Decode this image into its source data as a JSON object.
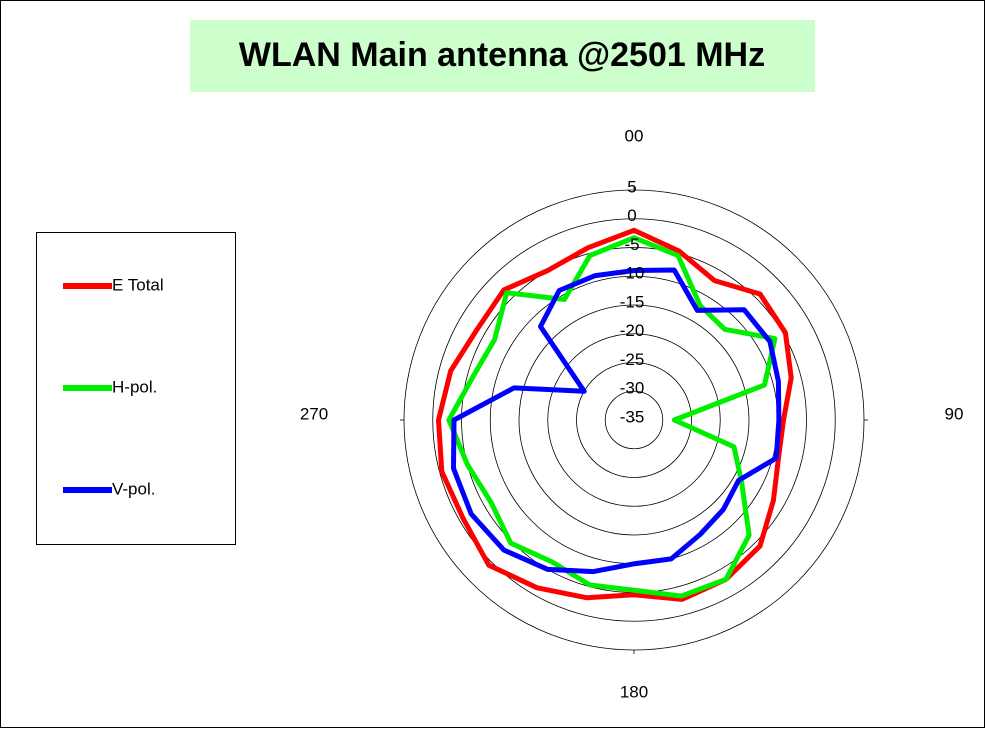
{
  "chart_data": {
    "type": "polar",
    "title": "WLAN Main antenna @2501 MHz",
    "theta": [
      0,
      15,
      30,
      45,
      60,
      75,
      90,
      105,
      120,
      135,
      150,
      165,
      180,
      195,
      210,
      225,
      240,
      255,
      270,
      285,
      300,
      315,
      330,
      345
    ],
    "series": [
      {
        "name": "E Total",
        "color": "#ff0000",
        "values": [
          -2,
          -4.6,
          -7,
          -4,
          -4.6,
          -6.7,
          -9,
          -9,
          -7,
          -4,
          -3,
          -2.7,
          -4.6,
          -3,
          -1.3,
          0.7,
          -0.7,
          -0.4,
          -1,
          -2,
          -3.5,
          -3,
          -5,
          -4
        ]
      },
      {
        "name": "H-pol.",
        "color": "#00ee00",
        "values": [
          -3.3,
          -5.4,
          -12,
          -12.7,
          -6.7,
          -11.5,
          -28,
          -17,
          -13.4,
          -6.7,
          -3,
          -3.3,
          -5.4,
          -5.3,
          -6.5,
          -4.7,
          -6.3,
          -5,
          -2.8,
          -6,
          -7,
          -3.7,
          -10.8,
          -5.4
        ]
      },
      {
        "name": "V-pol.",
        "color": "#0000ff",
        "values": [
          -9,
          -8,
          -13,
          -7.9,
          -7.7,
          -9,
          -9.8,
          -9.4,
          -14,
          -13,
          -12,
          -10,
          -10,
          -7.7,
          -5,
          -3,
          -2.3,
          -2.5,
          -3.7,
          -13.4,
          -25,
          -12,
          -9,
          -9
        ]
      }
    ],
    "rlim": [
      -35,
      5
    ],
    "rticks": [
      5,
      0,
      -5,
      -10,
      -15,
      -20,
      -25,
      -30,
      -35
    ],
    "thetaticks": [
      {
        "value": 0,
        "label": "00"
      },
      90,
      180,
      270
    ],
    "grid": true,
    "legend": "left"
  }
}
